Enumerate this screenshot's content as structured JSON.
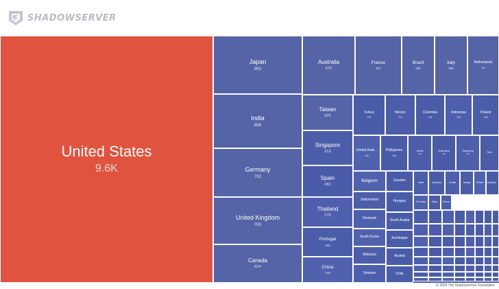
{
  "brand": {
    "name": "SHADOWSERVER",
    "logo_icon": "shadowserver-logo-icon"
  },
  "footer": {
    "copyright": "© 2024 The Shadowserver Foundation"
  },
  "colors": {
    "highlight": "#e0533e",
    "base": "#4d5fae"
  },
  "chart_data": {
    "type": "treemap",
    "title": "",
    "items": [
      {
        "name": "United States",
        "label": "9.6K",
        "value": 9600,
        "highlight": true
      },
      {
        "name": "Japan",
        "label": "963",
        "value": 963
      },
      {
        "name": "India",
        "label": "886",
        "value": 886
      },
      {
        "name": "Germany",
        "label": "792",
        "value": 792
      },
      {
        "name": "United Kingdom",
        "label": "780",
        "value": 780
      },
      {
        "name": "Canada",
        "label": "624",
        "value": 624
      },
      {
        "name": "Australia",
        "label": "579",
        "value": 579
      },
      {
        "name": "France",
        "label": "497",
        "value": 497
      },
      {
        "name": "Brazil",
        "label": "365",
        "value": 365
      },
      {
        "name": "Italy",
        "label": "355",
        "value": 355
      },
      {
        "name": "Netherlands",
        "label": "343",
        "value": 343
      },
      {
        "name": "Taiwan",
        "label": "326",
        "value": 326
      },
      {
        "name": "Singapore",
        "label": "319",
        "value": 319
      },
      {
        "name": "Spain",
        "label": "282",
        "value": 282
      },
      {
        "name": "Thailand",
        "label": "278",
        "value": 278
      },
      {
        "name": "Portugal",
        "label": "268",
        "value": 268
      },
      {
        "name": "China",
        "label": "245",
        "value": 245
      },
      {
        "name": "Turkey",
        "label": "234",
        "value": 234
      },
      {
        "name": "Mexico",
        "label": "226",
        "value": 226
      },
      {
        "name": "Colombia",
        "label": "206",
        "value": 206
      },
      {
        "name": "Indonesia",
        "label": "204",
        "value": 204
      },
      {
        "name": "Poland",
        "label": "198",
        "value": 198
      },
      {
        "name": "United Arab...",
        "label": "180",
        "value": 180
      },
      {
        "name": "Philippines",
        "label": "186",
        "value": 186
      },
      {
        "name": "Ireland",
        "label": "184",
        "value": 184
      },
      {
        "name": "South Africa",
        "label": "182",
        "value": 182
      },
      {
        "name": "Hong Kong",
        "label": "146",
        "value": 146
      },
      {
        "name": "Peru",
        "label": "",
        "value": 120
      },
      {
        "name": "Belgium",
        "label": "",
        "value": 108
      },
      {
        "name": "Sweden",
        "label": "",
        "value": 104
      },
      {
        "name": "Israel",
        "label": "",
        "value": 60
      },
      {
        "name": "Argentina",
        "label": "",
        "value": 60
      },
      {
        "name": "Croatia",
        "label": "",
        "value": 55
      },
      {
        "name": "Norway",
        "label": "",
        "value": 55
      },
      {
        "name": "Finland",
        "label": "",
        "value": 45
      },
      {
        "name": "Kazakhs...",
        "label": "",
        "value": 45
      },
      {
        "name": "Switzerland",
        "label": "",
        "value": 100
      },
      {
        "name": "Hungary",
        "label": "",
        "value": 98
      },
      {
        "name": "Denmark",
        "label": "",
        "value": 95
      },
      {
        "name": "South Arabia",
        "label": "",
        "value": 90
      },
      {
        "name": "South Korea",
        "label": "",
        "value": 90
      },
      {
        "name": "Azerbaijan",
        "label": "",
        "value": 88
      },
      {
        "name": "Malaysia",
        "label": "",
        "value": 85
      },
      {
        "name": "Austria",
        "label": "",
        "value": 80
      },
      {
        "name": "Vietnam",
        "label": "",
        "value": 78
      },
      {
        "name": "Chile",
        "label": "",
        "value": 76
      },
      {
        "name": "Sri Lanka",
        "label": "",
        "value": 40
      },
      {
        "name": "Qatar",
        "label": "",
        "value": 38
      },
      {
        "name": "Greece",
        "label": "",
        "value": 30
      }
    ]
  }
}
